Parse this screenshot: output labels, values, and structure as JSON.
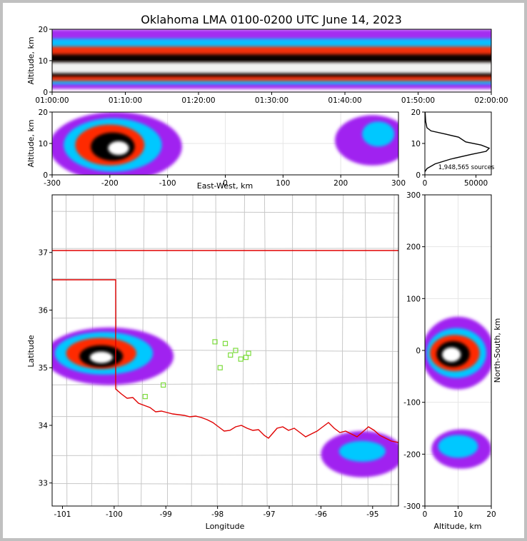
{
  "chart_data": [
    {
      "id": "time-height",
      "type": "heatmap",
      "title": "Oklahoma LMA 0100-0200 UTC June 14, 2023",
      "xlabel": "",
      "ylabel": "Altitude, km",
      "x_ticks": [
        "01:00:00",
        "01:10:00",
        "01:20:00",
        "01:30:00",
        "01:40:00",
        "01:50:00",
        "02:00:00"
      ],
      "xlim_minutes": [
        0,
        60
      ],
      "ylim": [
        0,
        20
      ],
      "y_ticks": [
        0,
        10,
        20
      ],
      "bands": [
        {
          "alt_low": 1,
          "alt_high": 20,
          "level": "low"
        },
        {
          "alt_low": 2.5,
          "alt_high": 17,
          "level": "medium"
        },
        {
          "alt_low": 3.5,
          "alt_high": 14.5,
          "level": "high"
        },
        {
          "alt_low": 5,
          "alt_high": 12,
          "level": "very_high"
        },
        {
          "alt_low": 6,
          "alt_high": 9.5,
          "level": "peak"
        }
      ]
    },
    {
      "id": "ew-height",
      "type": "heatmap",
      "xlabel": "East-West, km",
      "ylabel": "Altitude, km",
      "xlim": [
        -300,
        300
      ],
      "x_ticks": [
        -300,
        -200,
        -100,
        0,
        100,
        200,
        300
      ],
      "ylim": [
        0,
        20
      ],
      "y_ticks": [
        0,
        10,
        20
      ],
      "regions": [
        {
          "x": -190,
          "y": 9,
          "rx": 115,
          "ry": 11,
          "level": "low"
        },
        {
          "x": -195,
          "y": 9.5,
          "rx": 85,
          "ry": 8.5,
          "level": "medium"
        },
        {
          "x": -200,
          "y": 9.5,
          "rx": 60,
          "ry": 6.5,
          "level": "high"
        },
        {
          "x": -195,
          "y": 9,
          "rx": 38,
          "ry": 4.5,
          "level": "very_high"
        },
        {
          "x": -185,
          "y": 8.5,
          "rx": 18,
          "ry": 2.2,
          "level": "peak"
        },
        {
          "x": 255,
          "y": 11,
          "rx": 65,
          "ry": 8,
          "level": "low"
        },
        {
          "x": 265,
          "y": 13,
          "rx": 28,
          "ry": 4,
          "level": "medium"
        }
      ]
    },
    {
      "id": "alt-histogram",
      "type": "line",
      "xlim": [
        0,
        65000
      ],
      "x_ticks": [
        0,
        50000
      ],
      "ylim": [
        0,
        20
      ],
      "y_ticks": [
        0,
        10,
        20
      ],
      "x": [
        0,
        2000,
        10000,
        25000,
        45000,
        60000,
        63000,
        55000,
        40000,
        33000,
        20000,
        6000,
        2000,
        800,
        200
      ],
      "y": [
        1,
        2,
        3.5,
        5,
        6.5,
        7.5,
        8.5,
        9.5,
        10.5,
        12,
        13,
        14,
        15,
        17,
        20
      ],
      "annotation": "1,948,565 sources"
    },
    {
      "id": "plan-view",
      "type": "heatmap",
      "xlabel": "Longitude",
      "ylabel": "Latitude",
      "xlim": [
        -101.2,
        -94.5
      ],
      "ylim": [
        32.6,
        38
      ],
      "x_ticks": [
        -101,
        -100,
        -99,
        -98,
        -97,
        -96,
        -95
      ],
      "y_ticks": [
        33,
        34,
        35,
        36,
        37
      ],
      "regions": [
        {
          "lon": -100.1,
          "lat": 35.2,
          "rlon": 1.25,
          "rlat": 0.5,
          "level": "low"
        },
        {
          "lon": -100.2,
          "lat": 35.25,
          "rlon": 0.95,
          "rlat": 0.37,
          "level": "medium"
        },
        {
          "lon": -100.25,
          "lat": 35.25,
          "rlon": 0.68,
          "rlat": 0.27,
          "level": "high"
        },
        {
          "lon": -100.25,
          "lat": 35.2,
          "rlon": 0.42,
          "rlat": 0.19,
          "level": "very_high"
        },
        {
          "lon": -100.25,
          "lat": 35.18,
          "rlon": 0.22,
          "rlat": 0.1,
          "level": "peak"
        },
        {
          "lon": -95.2,
          "lat": 33.5,
          "rlon": 0.8,
          "rlat": 0.4,
          "level": "low"
        },
        {
          "lon": -95.2,
          "lat": 33.55,
          "rlon": 0.45,
          "rlat": 0.18,
          "level": "medium"
        }
      ],
      "stations": [
        {
          "lon": -99.4,
          "lat": 34.5
        },
        {
          "lon": -99.05,
          "lat": 34.7
        },
        {
          "lon": -97.95,
          "lat": 35.0
        },
        {
          "lon": -98.05,
          "lat": 35.45
        },
        {
          "lon": -97.85,
          "lat": 35.42
        },
        {
          "lon": -97.55,
          "lat": 35.15
        },
        {
          "lon": -97.4,
          "lat": 35.25
        },
        {
          "lon": -97.75,
          "lat": 35.22
        },
        {
          "lon": -97.65,
          "lat": 35.3
        },
        {
          "lon": -97.45,
          "lat": 35.18
        }
      ]
    },
    {
      "id": "ns-height",
      "type": "heatmap",
      "xlabel": "Altitude, km",
      "ylabel": "North-South, km",
      "xlim": [
        0,
        20
      ],
      "x_ticks": [
        0,
        10,
        20
      ],
      "ylim": [
        -300,
        300
      ],
      "y_ticks": [
        -300,
        -200,
        -100,
        0,
        100,
        200,
        300
      ],
      "regions": [
        {
          "x": 10,
          "y": -5,
          "rx": 11,
          "ry": 70,
          "level": "low"
        },
        {
          "x": 9.5,
          "y": -5,
          "rx": 9,
          "ry": 48,
          "level": "medium"
        },
        {
          "x": 9,
          "y": -5,
          "rx": 7.5,
          "ry": 35,
          "level": "high"
        },
        {
          "x": 8.5,
          "y": -7,
          "rx": 5,
          "ry": 25,
          "level": "very_high"
        },
        {
          "x": 8,
          "y": -8,
          "rx": 2.8,
          "ry": 14,
          "level": "peak"
        },
        {
          "x": 11,
          "y": -190,
          "rx": 9,
          "ry": 38,
          "level": "low"
        },
        {
          "x": 10,
          "y": -185,
          "rx": 6,
          "ry": 22,
          "level": "medium"
        }
      ]
    }
  ],
  "palette": {
    "low": "#a020f0",
    "medium": "#00c8ff",
    "high": "#ff2a00",
    "very_high": "#000000",
    "peak": "#ffffff",
    "state_border": "#e00000",
    "county_line": "#c8c8c8",
    "station": "#7cdc3c"
  }
}
